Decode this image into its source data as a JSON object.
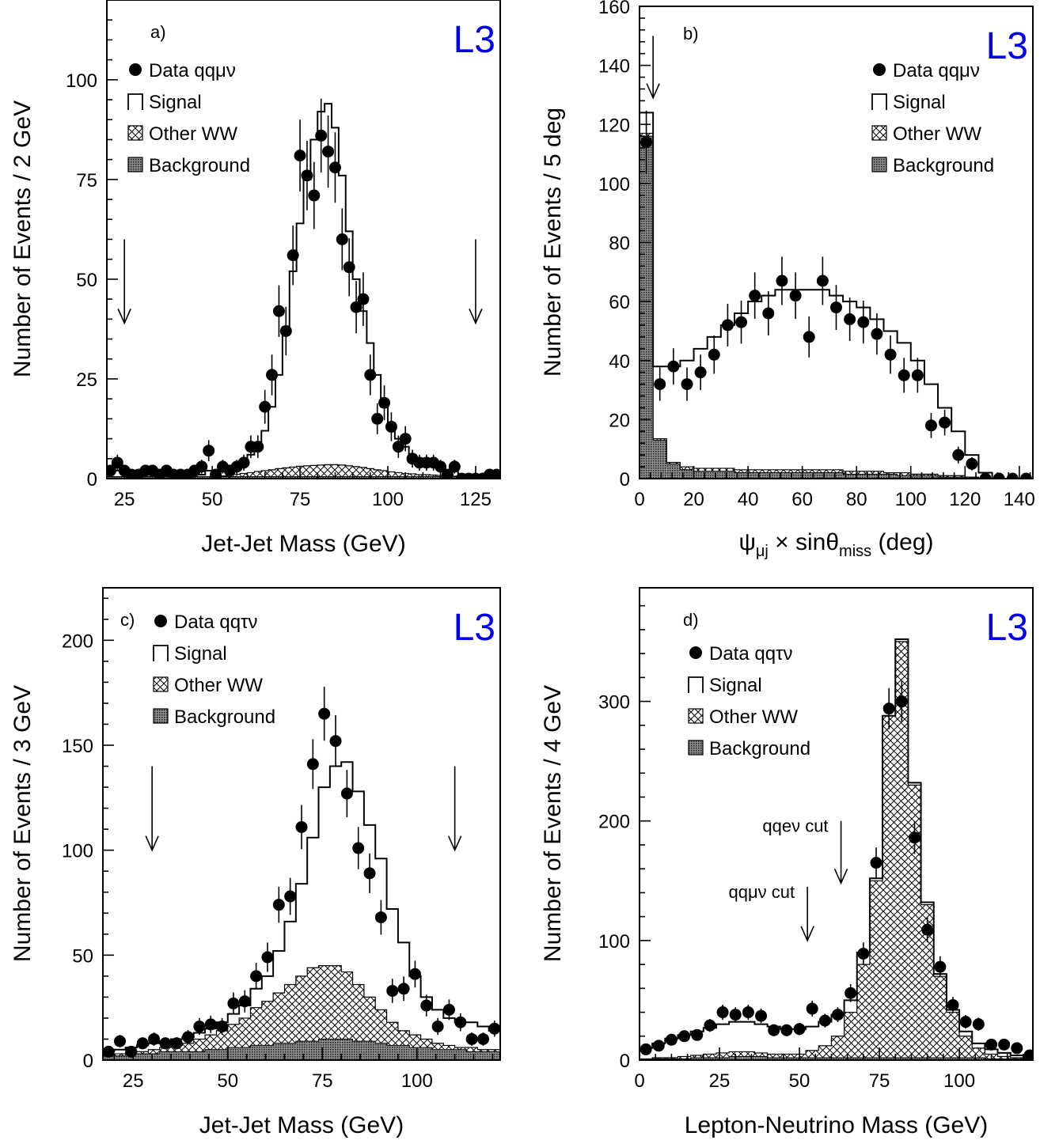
{
  "colors": {
    "experiment": "#0000ee",
    "ink": "#000000",
    "background_fill": "#666666"
  },
  "chart_data": [
    {
      "id": "a",
      "type": "histogram",
      "panel_label": "a)",
      "experiment": "L3",
      "xlabel": "Jet-Jet Mass (GeV)",
      "ylabel": "Number of Events / 2 GeV",
      "xlim": [
        20,
        132
      ],
      "ylim": [
        0,
        120
      ],
      "xticks": [
        25,
        50,
        75,
        100,
        125
      ],
      "yticks": [
        0,
        25,
        50,
        75,
        100
      ],
      "legend": {
        "position": "top-left",
        "data": "Data qqμν",
        "signal": "Signal",
        "other": "Other WW",
        "background": "Background"
      },
      "bin_edges": [
        20,
        22,
        24,
        26,
        28,
        30,
        32,
        34,
        36,
        38,
        40,
        42,
        44,
        46,
        48,
        50,
        52,
        54,
        56,
        58,
        60,
        62,
        64,
        66,
        68,
        70,
        72,
        74,
        76,
        78,
        80,
        82,
        84,
        86,
        88,
        90,
        92,
        94,
        96,
        98,
        100,
        102,
        104,
        106,
        108,
        110,
        112,
        114,
        116,
        118,
        120,
        122,
        124,
        126,
        128,
        130,
        132
      ],
      "background": [
        0.5,
        0.5,
        0.5,
        0.5,
        0.5,
        0.5,
        0.5,
        0.5,
        0.5,
        0.5,
        0.5,
        0.5,
        0.5,
        0.5,
        0.5,
        0.5,
        0.5,
        0.5,
        0.5,
        0.5,
        0.5,
        0.5,
        0.5,
        0.5,
        0.5,
        0.5,
        0.5,
        0.5,
        0.5,
        0.5,
        0.5,
        0.5,
        0.5,
        0.5,
        0.5,
        0.5,
        0.5,
        0.5,
        0.5,
        0.5,
        0.5,
        0.5,
        0.5,
        0.5,
        0.5,
        0.5,
        0.5,
        0.5,
        0.5,
        0.5,
        0.5,
        0.5,
        0.5,
        0.5,
        0.5,
        0.5
      ],
      "other_ww": [
        0.5,
        0.5,
        0.5,
        0.5,
        0.5,
        0.5,
        0.5,
        0.5,
        0.5,
        0.5,
        0.5,
        0.5,
        0.5,
        0.5,
        0.5,
        0.5,
        0.7,
        0.9,
        1.1,
        1.3,
        1.5,
        1.8,
        2.0,
        2.2,
        2.5,
        2.7,
        2.9,
        3.1,
        3.2,
        3.3,
        3.4,
        3.5,
        3.5,
        3.4,
        3.2,
        3.0,
        2.8,
        2.5,
        2.2,
        2.0,
        1.7,
        1.5,
        1.3,
        1.2,
        1.0,
        1.0,
        0.9,
        0.8,
        0.7,
        0.6,
        0.5,
        0.5,
        0.5,
        0.5,
        0.5,
        0.5
      ],
      "total": [
        2,
        2,
        2,
        2,
        2,
        2,
        2,
        2,
        2,
        1,
        1,
        1,
        1,
        1,
        2,
        2,
        2,
        2,
        3,
        4,
        6,
        8,
        12,
        18,
        26,
        38,
        52,
        64,
        75,
        85,
        92,
        94,
        88,
        76,
        62,
        50,
        42,
        34,
        26,
        18,
        14,
        10,
        8,
        6,
        5,
        4,
        3,
        3,
        2,
        2,
        1,
        1,
        1,
        1,
        1,
        1
      ],
      "data_x": [
        21,
        23,
        25,
        27,
        29,
        31,
        33,
        35,
        37,
        39,
        41,
        43,
        45,
        47,
        49,
        51,
        53,
        55,
        57,
        59,
        61,
        63,
        65,
        67,
        69,
        71,
        73,
        75,
        77,
        79,
        81,
        83,
        85,
        87,
        89,
        91,
        93,
        95,
        97,
        99,
        101,
        103,
        105,
        107,
        109,
        111,
        113,
        115,
        117,
        119,
        121,
        123,
        125,
        127,
        129,
        131
      ],
      "data_y": [
        2,
        4,
        2,
        1,
        1,
        2,
        2,
        1,
        2,
        1,
        1,
        1,
        2,
        3,
        7,
        1,
        3,
        2,
        3,
        4,
        8,
        8,
        18,
        26,
        42,
        37,
        56,
        81,
        76,
        71,
        86,
        82,
        78,
        60,
        53,
        43,
        45,
        26,
        15,
        19,
        13,
        8,
        10,
        5,
        4,
        4,
        4,
        3,
        1,
        3,
        0,
        0,
        0,
        0,
        1,
        1
      ],
      "arrows": [
        {
          "x": 25,
          "y_top": 60,
          "y_tip": 39
        },
        {
          "x": 125,
          "y_top": 60,
          "y_tip": 39
        }
      ]
    },
    {
      "id": "b",
      "type": "histogram",
      "panel_label": "b)",
      "experiment": "L3",
      "xlabel": "ψμj × sinθmiss (deg)",
      "ylabel": "Number of Events / 5 deg",
      "xlim": [
        0,
        145
      ],
      "ylim": [
        0,
        160
      ],
      "xticks": [
        0,
        20,
        40,
        60,
        80,
        100,
        120,
        140
      ],
      "yticks": [
        0,
        20,
        40,
        60,
        80,
        100,
        120,
        140,
        160
      ],
      "legend": {
        "position": "top-right",
        "data": "Data qqμν",
        "signal": "Signal",
        "other": "Other WW",
        "background": "Background"
      },
      "bin_edges": [
        0,
        5,
        10,
        15,
        20,
        25,
        30,
        35,
        40,
        45,
        50,
        55,
        60,
        65,
        70,
        75,
        80,
        85,
        90,
        95,
        100,
        105,
        110,
        115,
        120,
        125,
        130,
        135,
        140,
        145
      ],
      "background": [
        116,
        13,
        5,
        3,
        2.5,
        2.5,
        2.5,
        2,
        2,
        2,
        2,
        2,
        2,
        2,
        2,
        1.5,
        1.5,
        1.5,
        1.5,
        1,
        1,
        1,
        0.5,
        0.5,
        0.5,
        0,
        0,
        0,
        0
      ],
      "other_ww": [
        117,
        13.5,
        5.5,
        4,
        3.5,
        3.5,
        3.5,
        3,
        3,
        3,
        3,
        3,
        3,
        3,
        3,
        2.5,
        2.5,
        2.5,
        2,
        2,
        1.5,
        1.5,
        1,
        1,
        0.5,
        0,
        0,
        0,
        0
      ],
      "total": [
        124,
        38,
        38,
        40,
        44,
        48,
        52,
        56,
        60,
        62,
        64,
        64,
        64,
        64,
        62,
        60,
        58,
        54,
        50,
        46,
        40,
        32,
        24,
        16,
        8,
        2,
        0,
        0,
        0
      ],
      "data_x": [
        2.5,
        7.5,
        12.5,
        17.5,
        22.5,
        27.5,
        32.5,
        37.5,
        42.5,
        47.5,
        52.5,
        57.5,
        62.5,
        67.5,
        72.5,
        77.5,
        82.5,
        87.5,
        92.5,
        97.5,
        102.5,
        107.5,
        112.5,
        117.5,
        122.5,
        127.5,
        132.5,
        137.5,
        142.5
      ],
      "data_y": [
        114,
        32,
        38,
        32,
        36,
        42,
        52,
        53,
        62,
        56,
        67,
        62,
        48,
        67,
        58,
        54,
        53,
        49,
        42,
        35,
        35,
        18,
        19,
        8,
        5,
        0,
        0,
        0,
        0
      ],
      "arrows": [
        {
          "x": 5,
          "y_top": 150,
          "y_tip": 129
        }
      ]
    },
    {
      "id": "c",
      "type": "histogram",
      "panel_label": "c)",
      "experiment": "L3",
      "xlabel": "Jet-Jet Mass (GeV)",
      "ylabel": "Number of Events / 3 GeV",
      "xlim": [
        17,
        122
      ],
      "ylim": [
        0,
        225
      ],
      "xticks": [
        25,
        50,
        75,
        100
      ],
      "yticks": [
        0,
        50,
        100,
        150,
        200
      ],
      "legend": {
        "position": "top-left",
        "data": "Data qqτν",
        "signal": "Signal",
        "other": "Other WW",
        "background": "Background"
      },
      "bin_edges": [
        17,
        20,
        23,
        26,
        29,
        32,
        35,
        38,
        41,
        44,
        47,
        50,
        53,
        56,
        59,
        62,
        65,
        68,
        71,
        74,
        77,
        80,
        83,
        86,
        89,
        92,
        95,
        98,
        101,
        104,
        107,
        110,
        113,
        116,
        119,
        122
      ],
      "background": [
        2,
        2,
        3,
        3,
        3,
        4,
        4,
        4,
        4,
        5,
        5,
        6,
        6,
        7,
        7,
        8,
        8,
        9,
        9,
        10,
        10,
        10,
        9,
        9,
        8,
        7,
        7,
        6,
        6,
        5,
        5,
        5,
        4,
        4,
        4
      ],
      "other_ww": [
        2,
        3,
        4,
        4,
        5,
        6,
        7,
        8,
        10,
        12,
        14,
        17,
        20,
        25,
        28,
        32,
        36,
        40,
        44,
        45,
        45,
        42,
        36,
        30,
        24,
        18,
        14,
        12,
        10,
        8,
        7,
        6,
        6,
        5,
        5
      ],
      "total": [
        4,
        5,
        6,
        7,
        8,
        9,
        10,
        11,
        13,
        15,
        18,
        22,
        26,
        34,
        40,
        52,
        66,
        84,
        106,
        130,
        140,
        142,
        128,
        112,
        96,
        72,
        56,
        40,
        30,
        24,
        20,
        18,
        18,
        16,
        14
      ],
      "data_x": [
        18.5,
        21.5,
        24.5,
        27.5,
        30.5,
        33.5,
        36.5,
        39.5,
        42.5,
        45.5,
        48.5,
        51.5,
        54.5,
        57.5,
        60.5,
        63.5,
        66.5,
        69.5,
        72.5,
        75.5,
        78.5,
        81.5,
        84.5,
        87.5,
        90.5,
        93.5,
        96.5,
        99.5,
        102.5,
        105.5,
        108.5,
        111.5,
        114.5,
        117.5,
        120.5
      ],
      "data_y": [
        4,
        9,
        4,
        8,
        10,
        8,
        8,
        11,
        16,
        17,
        16,
        27,
        28,
        40,
        49,
        74,
        78,
        111,
        141,
        165,
        152,
        127,
        101,
        89,
        68,
        33,
        34,
        41,
        26,
        16,
        24,
        18,
        10,
        10,
        15
      ],
      "arrows": [
        {
          "x": 30,
          "y_top": 140,
          "y_tip": 100
        },
        {
          "x": 110,
          "y_top": 140,
          "y_tip": 100
        }
      ]
    },
    {
      "id": "d",
      "type": "histogram",
      "panel_label": "d)",
      "experiment": "L3",
      "xlabel": "Lepton-Neutrino Mass (GeV)",
      "ylabel": "Number of Events / 4 GeV",
      "xlim": [
        0,
        123
      ],
      "ylim": [
        0,
        395
      ],
      "xticks": [
        0,
        25,
        50,
        75,
        100
      ],
      "yticks": [
        0,
        100,
        200,
        300
      ],
      "legend": {
        "position": "top-left",
        "data": "Data qqτν",
        "signal": "Signal",
        "other": "Other WW",
        "background": "Background"
      },
      "bin_edges": [
        0,
        4,
        8,
        12,
        16,
        20,
        24,
        28,
        32,
        36,
        40,
        44,
        48,
        52,
        56,
        60,
        64,
        68,
        72,
        76,
        80,
        84,
        88,
        92,
        96,
        100,
        104,
        108,
        112,
        116,
        120,
        123
      ],
      "background": [
        1,
        1,
        1,
        1,
        2,
        2,
        2,
        3,
        3,
        3,
        2,
        2,
        2,
        2,
        2,
        2,
        2,
        2,
        2,
        2,
        2,
        2,
        2,
        2,
        2,
        2,
        2,
        1,
        1,
        1,
        1
      ],
      "other_ww": [
        1,
        2,
        2,
        3,
        4,
        5,
        6,
        7,
        7,
        6,
        5,
        5,
        5,
        8,
        12,
        20,
        40,
        80,
        150,
        288,
        350,
        230,
        130,
        70,
        40,
        20,
        10,
        5,
        3,
        2,
        1
      ],
      "total": [
        10,
        14,
        18,
        21,
        24,
        27,
        30,
        32,
        32,
        30,
        28,
        26,
        26,
        28,
        32,
        38,
        50,
        90,
        152,
        288,
        352,
        232,
        132,
        72,
        42,
        24,
        14,
        9,
        6,
        4,
        2
      ],
      "data_x": [
        2,
        6,
        10,
        14,
        18,
        22,
        26,
        30,
        34,
        38,
        42,
        46,
        50,
        54,
        58,
        62,
        66,
        70,
        74,
        78,
        82,
        86,
        90,
        94,
        98,
        102,
        106,
        110,
        114,
        118,
        122
      ],
      "data_y": [
        9,
        12,
        17,
        20,
        21,
        29,
        40,
        38,
        40,
        37,
        25,
        25,
        26,
        43,
        33,
        38,
        56,
        89,
        165,
        294,
        300,
        186,
        109,
        78,
        46,
        32,
        30,
        13,
        13,
        10,
        4
      ],
      "annotations": [
        {
          "text": "qqeν cut",
          "x": 63,
          "y_top": 200,
          "y_tip": 148
        },
        {
          "text": "qqμν cut",
          "x": 52.5,
          "y_top": 145,
          "y_tip": 100
        }
      ]
    }
  ]
}
